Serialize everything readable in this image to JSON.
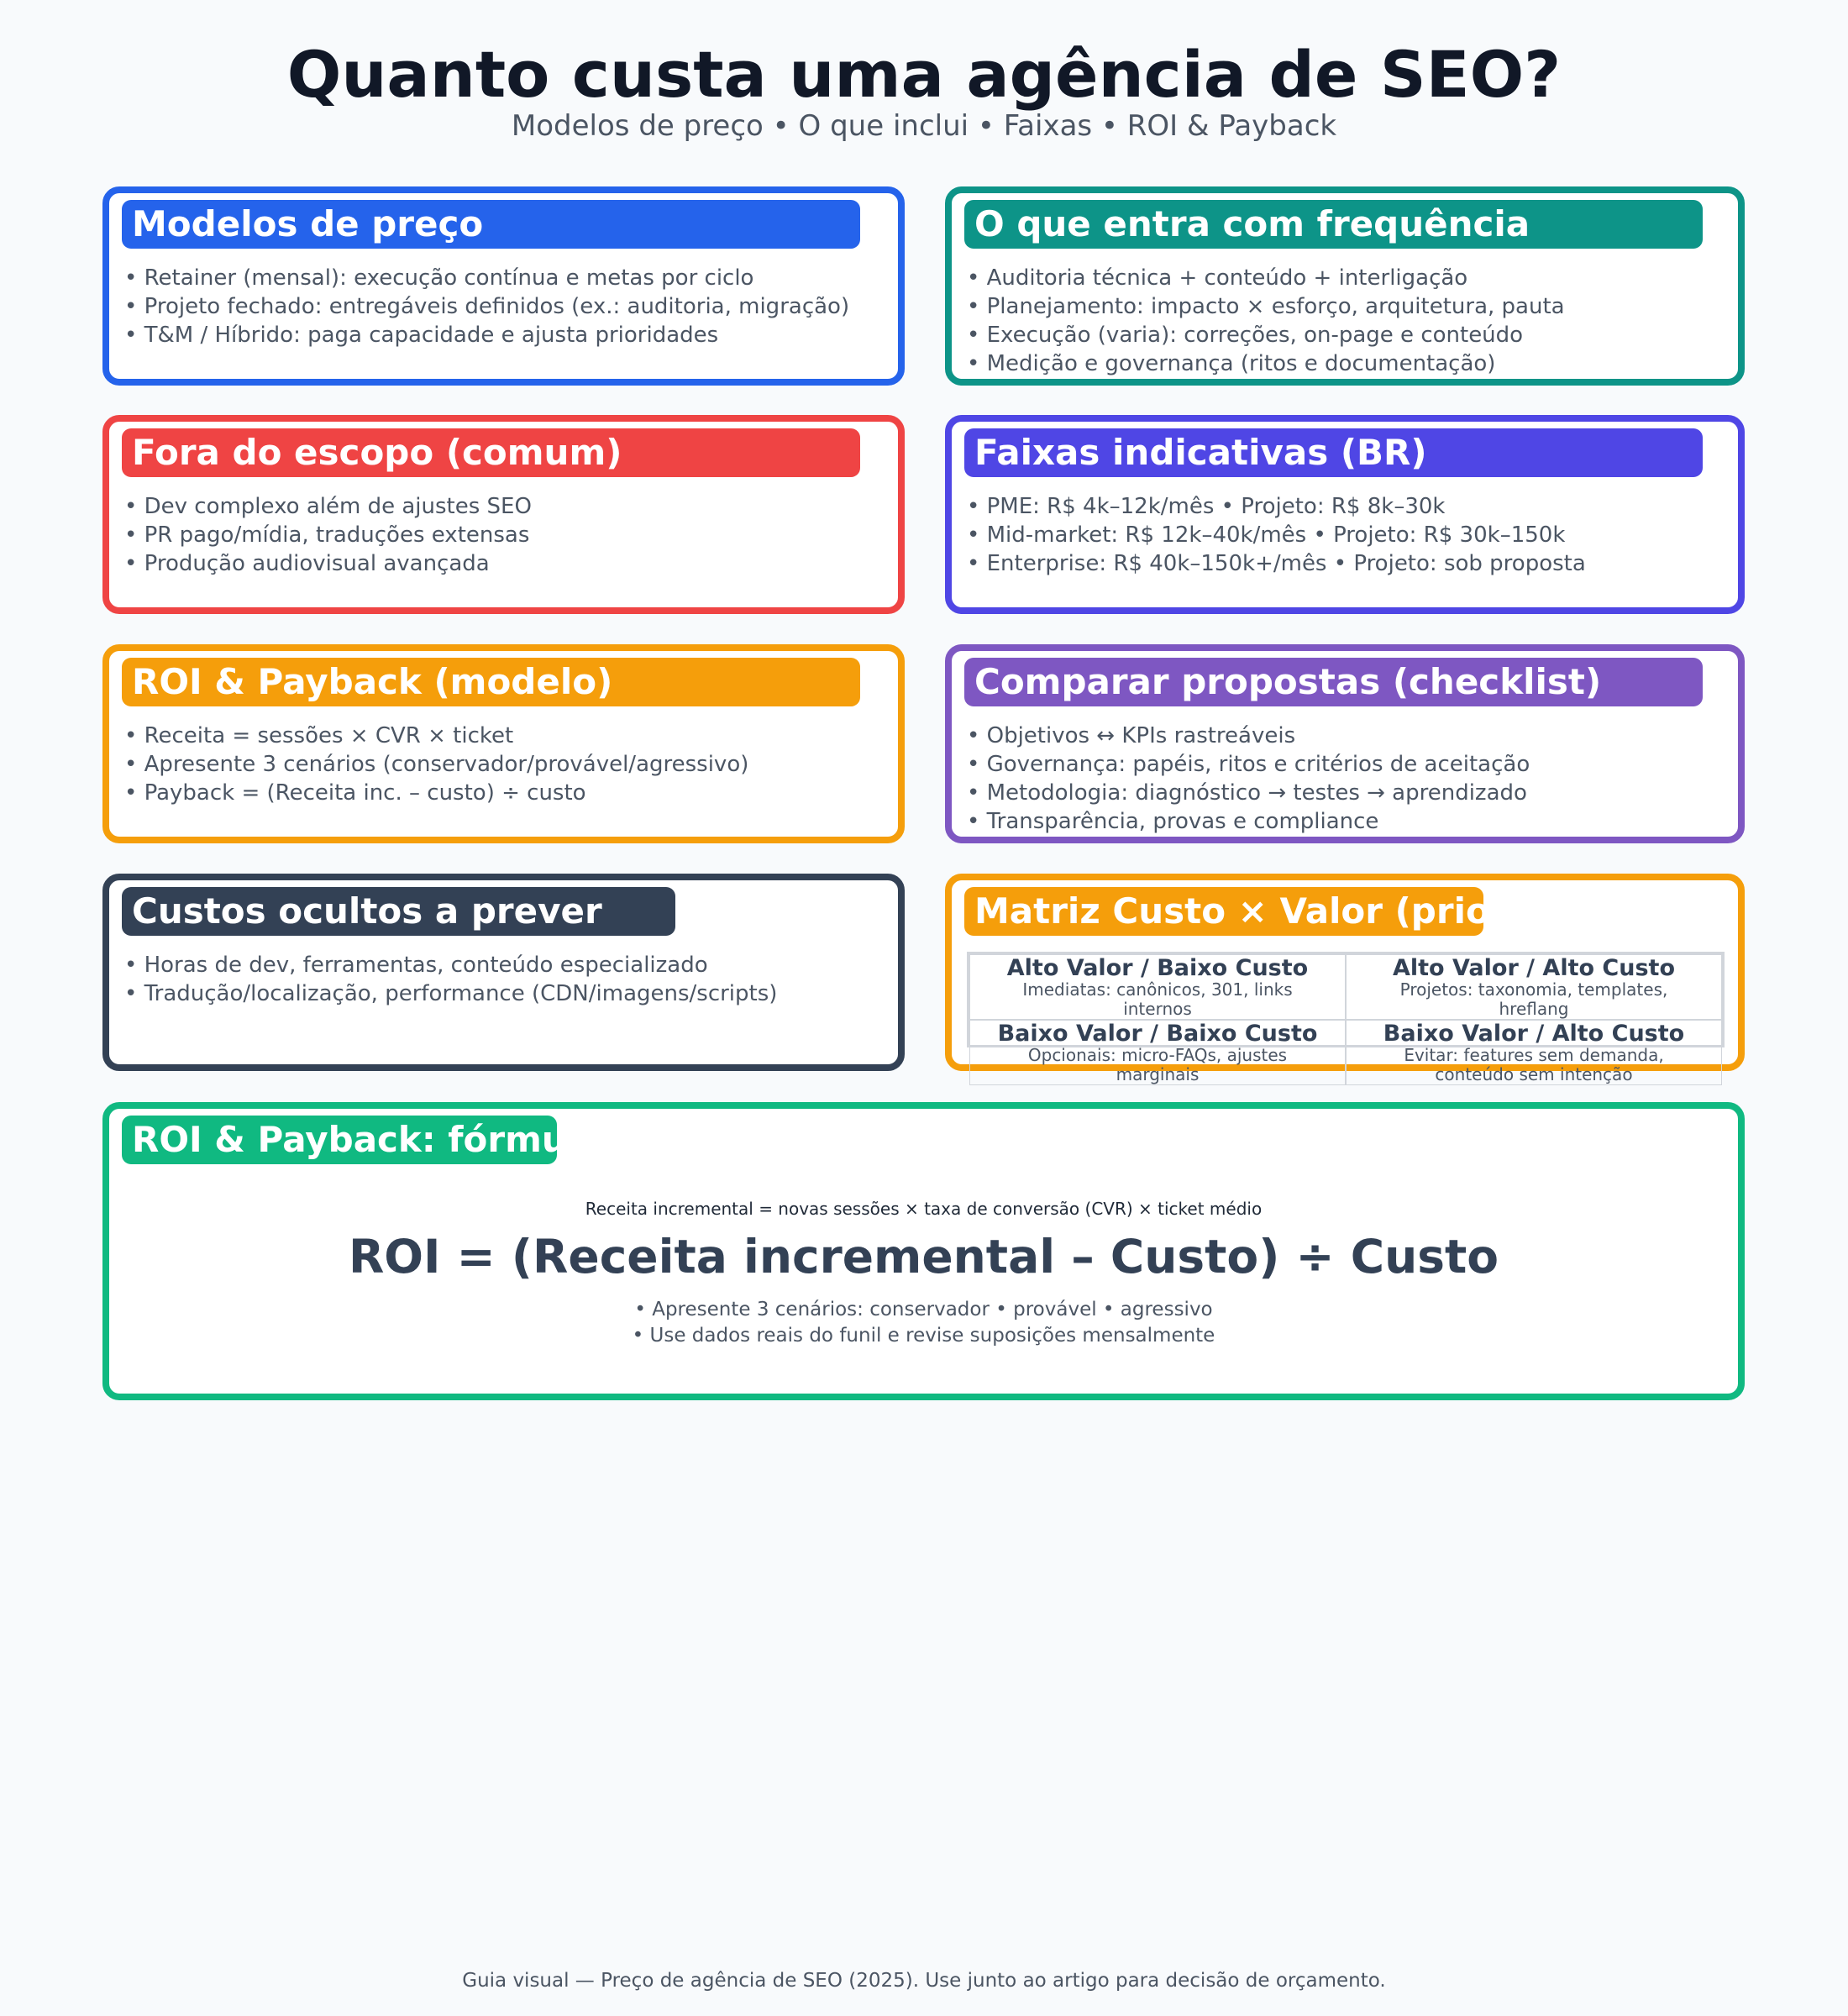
{
  "header": {
    "title": "Quanto custa uma agência de SEO?",
    "subtitle": "Modelos de preço • O que inclui • Faixas • ROI & Payback"
  },
  "colors": {
    "blue": "#2563eb",
    "teal": "#0d9488",
    "red": "#ef4444",
    "indigo": "#4f46e5",
    "orange": "#f59e0b",
    "purple": "#7e57c2",
    "slate": "#334155",
    "green": "#10b981"
  },
  "cards": [
    {
      "title": "Modelos de preço",
      "items": [
        "• Retainer (mensal): execução contínua e metas por ciclo",
        "• Projeto fechado: entregáveis definidos (ex.: auditoria, migração)",
        "• T&M / Híbrido: paga capacidade e ajusta prioridades"
      ]
    },
    {
      "title": "O que entra com frequência",
      "items": [
        "• Auditoria técnica + conteúdo + interligação",
        "• Planejamento: impacto × esforço, arquitetura, pauta",
        "• Execução (varia): correções, on-page e conteúdo",
        "• Medição e governança (ritos e documentação)"
      ]
    },
    {
      "title": "Fora do escopo (comum)",
      "items": [
        "• Dev complexo além de ajustes SEO",
        "• PR pago/mídia, traduções extensas",
        "• Produção audiovisual avançada"
      ]
    },
    {
      "title": "Faixas indicativas (BR)",
      "items": [
        "• PME: R$ 4k–12k/mês • Projeto: R$ 8k–30k",
        "• Mid-market: R$ 12k–40k/mês • Projeto: R$ 30k–150k",
        "• Enterprise: R$ 40k–150k+/mês • Projeto: sob proposta"
      ]
    },
    {
      "title": "ROI & Payback (modelo)",
      "items": [
        "• Receita = sessões × CVR × ticket",
        "• Apresente 3 cenários (conservador/provável/agressivo)",
        "• Payback = (Receita inc. – custo) ÷ custo"
      ]
    },
    {
      "title": "Comparar propostas (checklist)",
      "items": [
        "• Objetivos ↔ KPIs rastreáveis",
        "• Governança: papéis, ritos e critérios de aceitação",
        "• Metodologia: diagnóstico → testes → aprendizado",
        "• Transparência, provas e compliance"
      ]
    },
    {
      "title": "Custos ocultos a prever",
      "items": [
        "• Horas de dev, ferramentas, conteúdo especializado",
        "• Tradução/localização, performance (CDN/imagens/scripts)"
      ]
    },
    {
      "title": "Matriz Custo × Valor (prioridade)",
      "matrix": [
        {
          "head": "Alto Valor / Baixo Custo",
          "desc": "Imediatas: canônicos, 301, links internos"
        },
        {
          "head": "Alto Valor / Alto Custo",
          "desc": "Projetos: taxonomia, templates, hreflang"
        },
        {
          "head": "Baixo Valor / Baixo Custo",
          "desc": "Opcionais: micro-FAQs, ajustes marginais"
        },
        {
          "head": "Baixo Valor / Alto Custo",
          "desc": "Evitar: features sem demanda, conteúdo sem intenção"
        }
      ]
    }
  ],
  "roi": {
    "title": "ROI & Payback: fórmula",
    "revenue": "Receita incremental = novas sessões × taxa de conversão (CVR) × ticket médio",
    "formula": "ROI = (Receita incremental – Custo) ÷ Custo",
    "notes": [
      "• Apresente 3 cenários: conservador • provável • agressivo",
      "• Use dados reais do funil e revise suposições mensalmente"
    ]
  },
  "footer": "Guia visual — Preço de agência de SEO (2025). Use junto ao artigo para decisão de orçamento."
}
